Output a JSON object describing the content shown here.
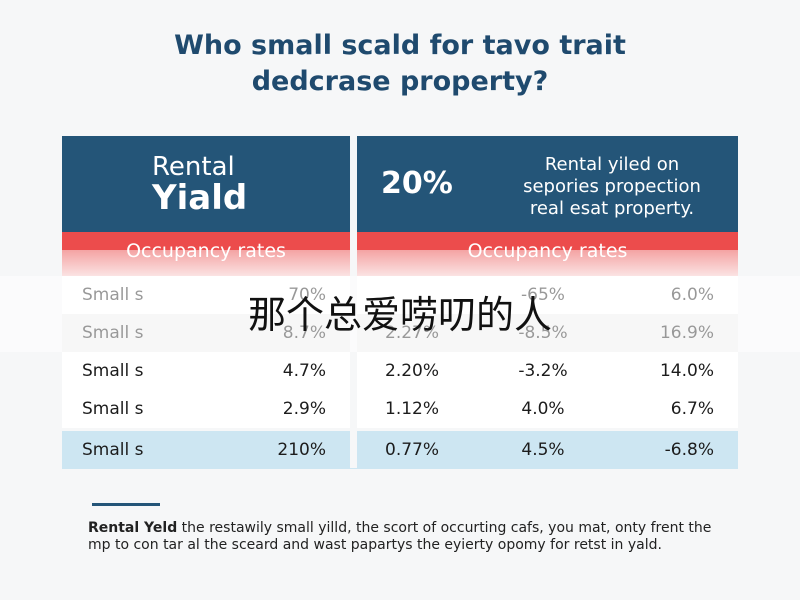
{
  "title": {
    "line1": "Who small scald for tavo trait",
    "line2": "dedcrase property?"
  },
  "left_panel": {
    "heading1": "Rental",
    "heading2": "Yiald",
    "band": "Occupancy rates"
  },
  "right_panel": {
    "big": "20%",
    "text1": "Rental yiled on",
    "text2": "sepories propection",
    "text3": "real esat property.",
    "band": "Occupancy rates"
  },
  "table": {
    "rows": [
      [
        "Small s",
        "70%",
        null,
        "-65%",
        "6.0%"
      ],
      [
        "Small s",
        "8.7%",
        "2.27%",
        "-8.5%",
        "16.9%"
      ],
      [
        "Small s",
        "4.7%",
        "2.20%",
        "-3.2%",
        "14.0%"
      ],
      [
        "Small s",
        "2.9%",
        "1.12%",
        "4.0%",
        "6.7%"
      ],
      [
        "Small s",
        "210%",
        "0.77%",
        "4.5%",
        "-6.8%"
      ]
    ]
  },
  "overlay": {
    "caption": "那个总爱唠叨的人"
  },
  "footer": {
    "lead": "Rental Yeld",
    "text": " the restawily small yilld, the scort of occurting cafs, you mat, onty frent the mp to con tar al the sceard and wast papartys the eyierty opomy for retst in yald."
  }
}
